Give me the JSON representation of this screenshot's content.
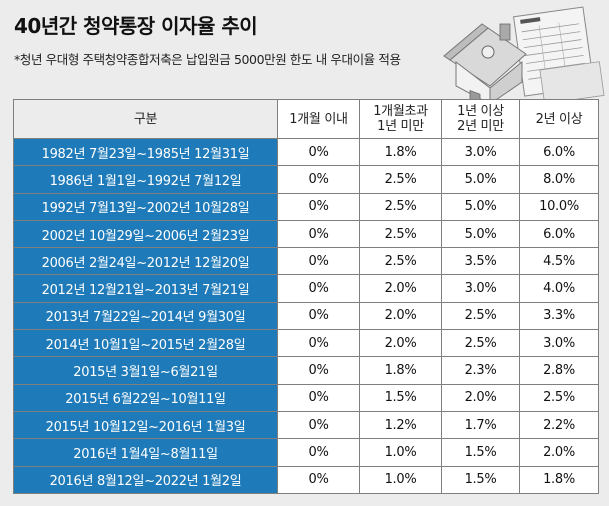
{
  "header": {
    "title": "40년간 청약통장 이자율 추이",
    "subtitle": "*청년 우대형 주택청약종합저축은 납입원금 5000만원 한도 내 우대이율 적용"
  },
  "colors": {
    "period_cell": "#1e7ab8",
    "background": "#ececec",
    "cell": "#ffffff"
  },
  "table": {
    "headers": {
      "gubun": "구분",
      "within_1m": "1개월 이내",
      "m1_y1_line1": "1개월초과",
      "m1_y1_line2": "1년 미만",
      "y1_y2_line1": "1년 이상",
      "y1_y2_line2": "2년 미만",
      "over_2y": "2년 이상"
    },
    "rows": [
      {
        "period": "1982년 7월23일~1985년 12월31일",
        "r1": "0%",
        "r2": "1.8%",
        "r3": "3.0%",
        "r4": "6.0%"
      },
      {
        "period": "1986년 1월1일~1992년 7월12일",
        "r1": "0%",
        "r2": "2.5%",
        "r3": "5.0%",
        "r4": "8.0%"
      },
      {
        "period": "1992년 7월13일~2002년 10월28일",
        "r1": "0%",
        "r2": "2.5%",
        "r3": "5.0%",
        "r4": "10.0%"
      },
      {
        "period": "2002년 10월29일~2006년 2월23일",
        "r1": "0%",
        "r2": "2.5%",
        "r3": "5.0%",
        "r4": "6.0%"
      },
      {
        "period": "2006년 2월24일~2012년 12월20일",
        "r1": "0%",
        "r2": "2.5%",
        "r3": "3.5%",
        "r4": "4.5%"
      },
      {
        "period": "2012년 12월21일~2013년 7월21일",
        "r1": "0%",
        "r2": "2.0%",
        "r3": "3.0%",
        "r4": "4.0%"
      },
      {
        "period": "2013년 7월22일~2014년 9월30일",
        "r1": "0%",
        "r2": "2.0%",
        "r3": "2.5%",
        "r4": "3.3%"
      },
      {
        "period": "2014년 10월1일~2015년 2월28일",
        "r1": "0%",
        "r2": "2.0%",
        "r3": "2.5%",
        "r4": "3.0%"
      },
      {
        "period": "2015년 3월1일~6월21일",
        "r1": "0%",
        "r2": "1.8%",
        "r3": "2.3%",
        "r4": "2.8%"
      },
      {
        "period": "2015년 6월22일~10월11일",
        "r1": "0%",
        "r2": "1.5%",
        "r3": "2.0%",
        "r4": "2.5%"
      },
      {
        "period": "2015년 10월12일~2016년 1월3일",
        "r1": "0%",
        "r2": "1.2%",
        "r3": "1.7%",
        "r4": "2.2%"
      },
      {
        "period": "2016년 1월4일~8월11일",
        "r1": "0%",
        "r2": "1.0%",
        "r3": "1.5%",
        "r4": "2.0%"
      },
      {
        "period": "2016년 8월12일~2022년 1월2일",
        "r1": "0%",
        "r2": "1.0%",
        "r3": "1.5%",
        "r4": "1.8%"
      }
    ]
  },
  "icons": {
    "illustration": "house-and-bankbook-icon"
  }
}
